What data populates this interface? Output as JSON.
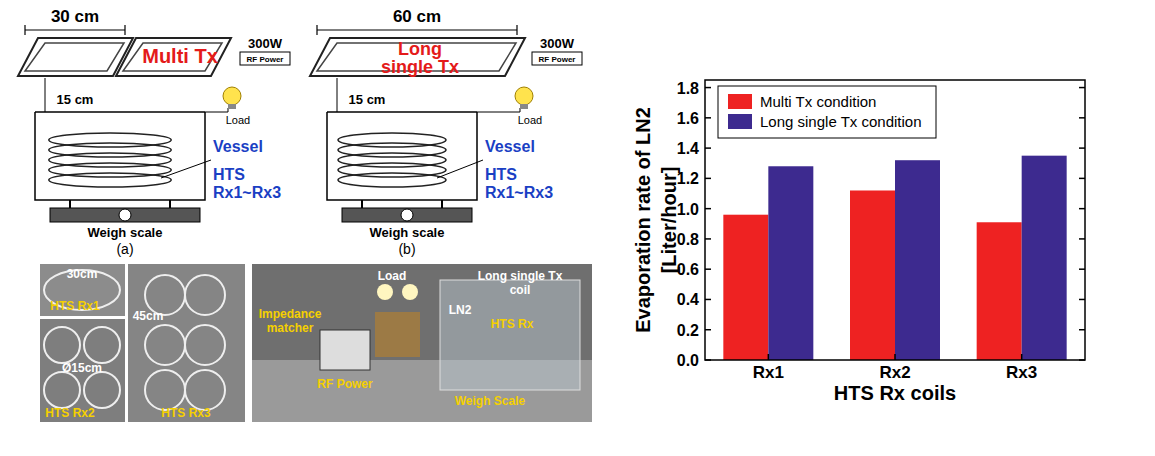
{
  "chart_data": {
    "type": "bar",
    "categories": [
      "Rx1",
      "Rx2",
      "Rx3"
    ],
    "series": [
      {
        "name": "Multi Tx condition",
        "color": "#ee2222",
        "values": [
          0.96,
          1.12,
          0.91
        ]
      },
      {
        "name": "Long single Tx condition",
        "color": "#3d2a8f",
        "values": [
          1.28,
          1.32,
          1.35
        ]
      }
    ],
    "x_label": "HTS Rx coils",
    "y_label": [
      "Evaporation rate of LN2",
      "[Liter/hour]"
    ],
    "ylim": [
      0,
      1.85
    ],
    "yticks": [
      {
        "value": 0,
        "label": "0.0"
      },
      0.2,
      0.4,
      0.6,
      0.8,
      {
        "value": 1,
        "label": "1.0"
      },
      1.2,
      1.4,
      1.6,
      1.8
    ],
    "legend": "upper left",
    "grid": false
  },
  "figure": {
    "panels": [
      {
        "tag": "(a)",
        "width": "30 cm",
        "tx": [
          "Multi Tx"
        ],
        "power": "300W",
        "power_box": "RF Power",
        "gap": "15 cm",
        "load": "Load",
        "vessel": "Vessel",
        "rx": [
          "HTS",
          "Rx1~Rx3"
        ],
        "scale": "Weigh scale"
      },
      {
        "tag": "(b)",
        "width": "60 cm",
        "tx": [
          "Long",
          "single Tx"
        ],
        "power": "300W",
        "power_box": "RF Power",
        "gap": "15 cm",
        "load": "Load",
        "vessel": "Vessel",
        "rx": [
          "HTS",
          "Rx1~Rx3"
        ],
        "scale": "Weigh scale"
      }
    ],
    "photos": [
      {
        "labels": [
          [
            "30cm"
          ],
          [
            "HTS Rx1"
          ],
          [
            "Ø15cm"
          ],
          [
            "HTS Rx2"
          ],
          [
            "45cm"
          ],
          [
            "HTS Rx3"
          ]
        ]
      },
      {
        "labels": [
          [
            "Load"
          ],
          [
            "Long single Tx",
            "coil"
          ],
          [
            "LN2"
          ],
          [
            "HTS Rx"
          ],
          [
            "Impedance",
            "matcher"
          ],
          [
            "RF Power"
          ],
          [
            "Weigh Scale"
          ]
        ]
      }
    ]
  }
}
